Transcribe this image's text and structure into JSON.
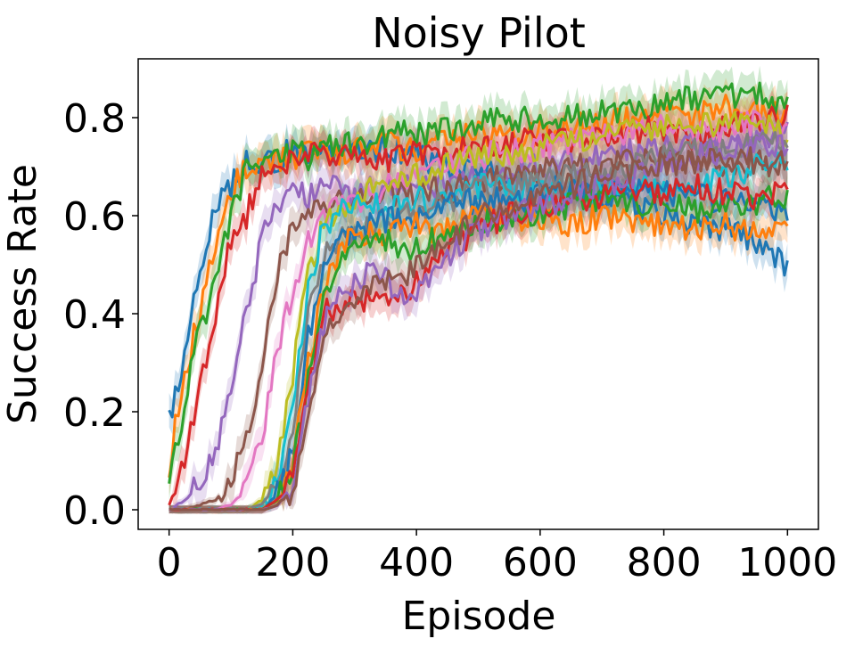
{
  "chart_data": {
    "type": "line",
    "title": "Noisy Pilot",
    "xlabel": "Episode",
    "ylabel": "Success Rate",
    "xlim": [
      -50,
      1050
    ],
    "ylim": [
      -0.04,
      0.92
    ],
    "xticks": [
      0,
      200,
      400,
      600,
      800,
      1000
    ],
    "yticks": [
      0.0,
      0.2,
      0.4,
      0.6,
      0.8
    ],
    "xtick_labels": [
      "0",
      "200",
      "400",
      "600",
      "800",
      "1000"
    ],
    "ytick_labels": [
      "0.0",
      "0.2",
      "0.4",
      "0.6",
      "0.8"
    ],
    "grid": false,
    "legend": "none",
    "x": [
      0,
      25,
      50,
      75,
      100,
      125,
      150,
      175,
      200,
      225,
      250,
      275,
      300,
      325,
      350,
      375,
      400,
      425,
      450,
      475,
      500,
      550,
      600,
      650,
      700,
      750,
      800,
      850,
      900,
      950,
      1000
    ],
    "series": [
      {
        "color": "#1f77b4",
        "values": [
          0.18,
          0.32,
          0.5,
          0.62,
          0.66,
          0.72,
          0.7,
          0.71,
          0.74,
          0.72,
          0.73,
          0.74,
          0.75,
          0.73,
          0.74,
          0.73,
          0.72,
          0.71,
          0.7,
          0.7,
          0.69,
          0.68,
          0.66,
          0.65,
          0.64,
          0.62,
          0.6,
          0.58,
          0.57,
          0.55,
          0.5
        ]
      },
      {
        "color": "#ff7f0e",
        "values": [
          0.09,
          0.28,
          0.4,
          0.55,
          0.65,
          0.7,
          0.71,
          0.72,
          0.71,
          0.73,
          0.74,
          0.72,
          0.73,
          0.74,
          0.75,
          0.74,
          0.73,
          0.74,
          0.75,
          0.76,
          0.77,
          0.76,
          0.77,
          0.78,
          0.79,
          0.8,
          0.81,
          0.8,
          0.82,
          0.81,
          0.82
        ]
      },
      {
        "color": "#2ca02c",
        "values": [
          0.05,
          0.22,
          0.38,
          0.45,
          0.6,
          0.69,
          0.71,
          0.72,
          0.73,
          0.72,
          0.74,
          0.75,
          0.74,
          0.75,
          0.76,
          0.77,
          0.76,
          0.77,
          0.78,
          0.78,
          0.79,
          0.8,
          0.79,
          0.8,
          0.81,
          0.82,
          0.83,
          0.84,
          0.84,
          0.85,
          0.82
        ]
      },
      {
        "color": "#d62728",
        "values": [
          0.01,
          0.1,
          0.25,
          0.4,
          0.56,
          0.6,
          0.68,
          0.7,
          0.71,
          0.72,
          0.73,
          0.72,
          0.73,
          0.72,
          0.71,
          0.72,
          0.73,
          0.72,
          0.73,
          0.74,
          0.74,
          0.75,
          0.76,
          0.75,
          0.76,
          0.77,
          0.78,
          0.76,
          0.78,
          0.79,
          0.8
        ]
      },
      {
        "color": "#9467bd",
        "values": [
          0.0,
          0.02,
          0.05,
          0.12,
          0.25,
          0.4,
          0.55,
          0.62,
          0.65,
          0.64,
          0.66,
          0.65,
          0.64,
          0.66,
          0.65,
          0.66,
          0.65,
          0.66,
          0.67,
          0.68,
          0.67,
          0.69,
          0.7,
          0.71,
          0.72,
          0.73,
          0.74,
          0.75,
          0.74,
          0.76,
          0.77
        ]
      },
      {
        "color": "#8c564b",
        "values": [
          0.0,
          0.0,
          0.01,
          0.02,
          0.06,
          0.15,
          0.3,
          0.48,
          0.57,
          0.62,
          0.63,
          0.64,
          0.63,
          0.64,
          0.65,
          0.64,
          0.65,
          0.66,
          0.65,
          0.66,
          0.67,
          0.68,
          0.69,
          0.7,
          0.7,
          0.71,
          0.72,
          0.71,
          0.7,
          0.71,
          0.7
        ]
      },
      {
        "color": "#e377c2",
        "values": [
          0.0,
          0.0,
          0.0,
          0.0,
          0.01,
          0.04,
          0.15,
          0.32,
          0.45,
          0.55,
          0.6,
          0.62,
          0.63,
          0.64,
          0.66,
          0.67,
          0.68,
          0.69,
          0.7,
          0.71,
          0.72,
          0.73,
          0.74,
          0.75,
          0.76,
          0.77,
          0.78,
          0.77,
          0.78,
          0.79,
          0.78
        ]
      },
      {
        "color": "#bcbd22",
        "values": [
          0.0,
          0.0,
          0.0,
          0.0,
          0.0,
          0.0,
          0.02,
          0.1,
          0.28,
          0.48,
          0.58,
          0.62,
          0.63,
          0.65,
          0.66,
          0.67,
          0.68,
          0.69,
          0.7,
          0.71,
          0.72,
          0.73,
          0.74,
          0.75,
          0.76,
          0.77,
          0.78,
          0.79,
          0.78,
          0.8,
          0.76
        ]
      },
      {
        "color": "#17becf",
        "values": [
          0.0,
          0.0,
          0.0,
          0.0,
          0.0,
          0.0,
          0.01,
          0.06,
          0.22,
          0.45,
          0.58,
          0.61,
          0.62,
          0.63,
          0.62,
          0.63,
          0.64,
          0.63,
          0.64,
          0.65,
          0.66,
          0.65,
          0.66,
          0.64,
          0.66,
          0.65,
          0.67,
          0.66,
          0.68,
          0.7,
          0.72
        ]
      },
      {
        "color": "#7f7f7f",
        "values": [
          0.0,
          0.0,
          0.0,
          0.0,
          0.0,
          0.0,
          0.01,
          0.05,
          0.18,
          0.4,
          0.52,
          0.55,
          0.57,
          0.58,
          0.59,
          0.6,
          0.61,
          0.62,
          0.63,
          0.64,
          0.65,
          0.66,
          0.67,
          0.68,
          0.69,
          0.7,
          0.72,
          0.73,
          0.74,
          0.75,
          0.76
        ]
      },
      {
        "color": "#1f77b4",
        "values": [
          0.0,
          0.0,
          0.0,
          0.0,
          0.0,
          0.0,
          0.0,
          0.03,
          0.12,
          0.35,
          0.5,
          0.55,
          0.57,
          0.58,
          0.59,
          0.6,
          0.6,
          0.61,
          0.62,
          0.63,
          0.63,
          0.64,
          0.63,
          0.65,
          0.64,
          0.66,
          0.65,
          0.64,
          0.63,
          0.62,
          0.6
        ]
      },
      {
        "color": "#ff7f0e",
        "values": [
          0.0,
          0.0,
          0.0,
          0.0,
          0.0,
          0.0,
          0.0,
          0.02,
          0.1,
          0.3,
          0.45,
          0.52,
          0.56,
          0.57,
          0.56,
          0.57,
          0.58,
          0.57,
          0.58,
          0.59,
          0.6,
          0.59,
          0.6,
          0.58,
          0.6,
          0.59,
          0.58,
          0.57,
          0.58,
          0.56,
          0.58
        ]
      },
      {
        "color": "#2ca02c",
        "values": [
          0.0,
          0.0,
          0.0,
          0.0,
          0.0,
          0.0,
          0.0,
          0.02,
          0.08,
          0.28,
          0.44,
          0.5,
          0.54,
          0.56,
          0.55,
          0.54,
          0.53,
          0.55,
          0.56,
          0.57,
          0.58,
          0.6,
          0.61,
          0.62,
          0.64,
          0.63,
          0.62,
          0.61,
          0.62,
          0.63,
          0.64
        ]
      },
      {
        "color": "#d62728",
        "values": [
          0.0,
          0.0,
          0.0,
          0.0,
          0.0,
          0.0,
          0.0,
          0.02,
          0.06,
          0.25,
          0.4,
          0.42,
          0.44,
          0.42,
          0.43,
          0.45,
          0.46,
          0.5,
          0.52,
          0.55,
          0.58,
          0.6,
          0.62,
          0.63,
          0.64,
          0.65,
          0.64,
          0.66,
          0.65,
          0.64,
          0.65
        ]
      },
      {
        "color": "#9467bd",
        "values": [
          0.0,
          0.0,
          0.0,
          0.0,
          0.0,
          0.0,
          0.0,
          0.01,
          0.05,
          0.22,
          0.38,
          0.44,
          0.46,
          0.48,
          0.47,
          0.44,
          0.45,
          0.48,
          0.52,
          0.55,
          0.57,
          0.6,
          0.62,
          0.64,
          0.66,
          0.68,
          0.7,
          0.72,
          0.73,
          0.74,
          0.75
        ]
      },
      {
        "color": "#8c564b",
        "values": [
          0.0,
          0.0,
          0.0,
          0.0,
          0.0,
          0.0,
          0.0,
          0.01,
          0.04,
          0.2,
          0.35,
          0.38,
          0.42,
          0.45,
          0.47,
          0.48,
          0.49,
          0.52,
          0.55,
          0.57,
          0.6,
          0.62,
          0.64,
          0.66,
          0.68,
          0.69,
          0.7,
          0.71,
          0.72,
          0.71,
          0.72
        ]
      }
    ]
  }
}
